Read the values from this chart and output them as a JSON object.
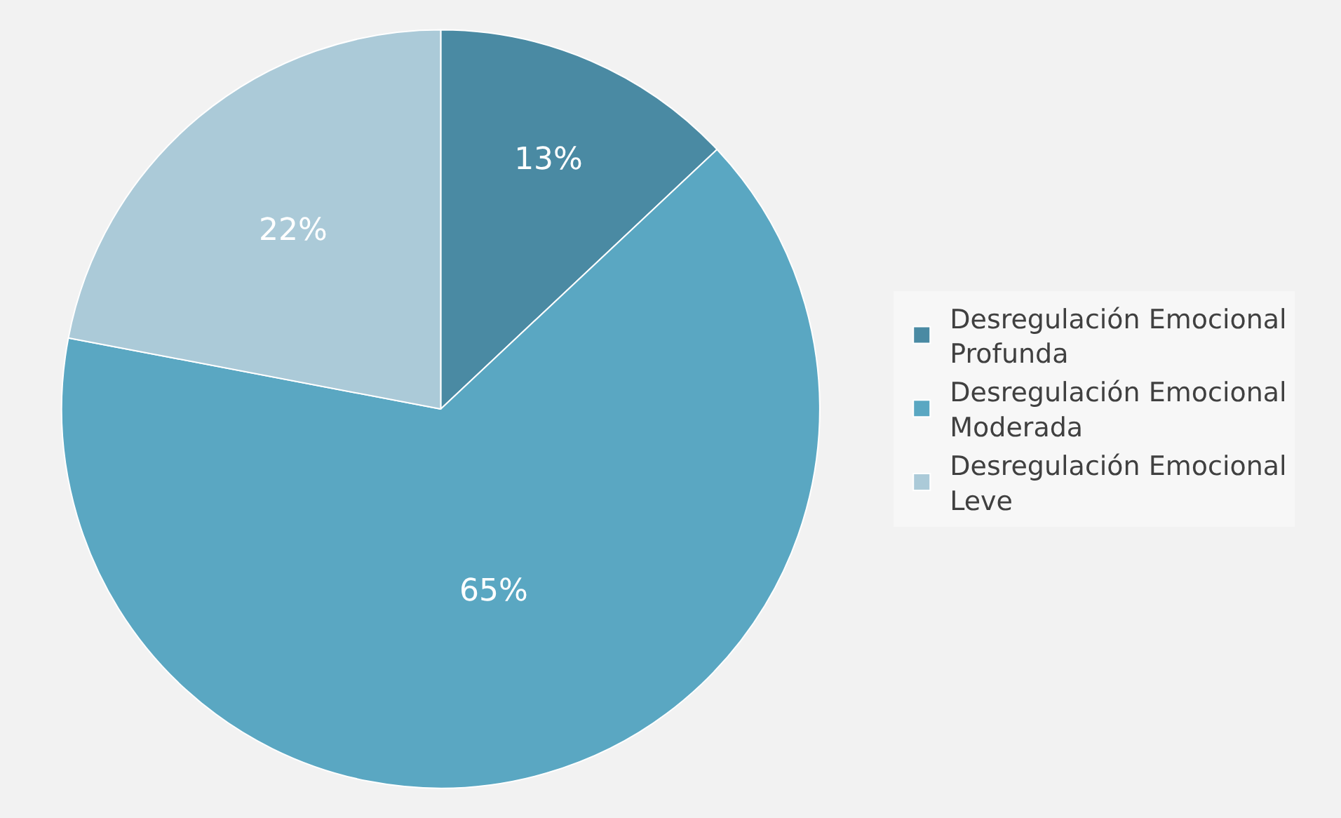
{
  "chart_data": {
    "type": "pie",
    "categories": [
      "Desregulación Emocional Profunda",
      "Desregulación Emocional Moderada",
      "Desregulación Emocional Leve"
    ],
    "values": [
      13,
      65,
      22
    ],
    "value_labels": [
      "13%",
      "65%",
      "22%"
    ],
    "colors": [
      "#4a8aa3",
      "#5aa7c2",
      "#abcad8"
    ],
    "legend": "right"
  }
}
